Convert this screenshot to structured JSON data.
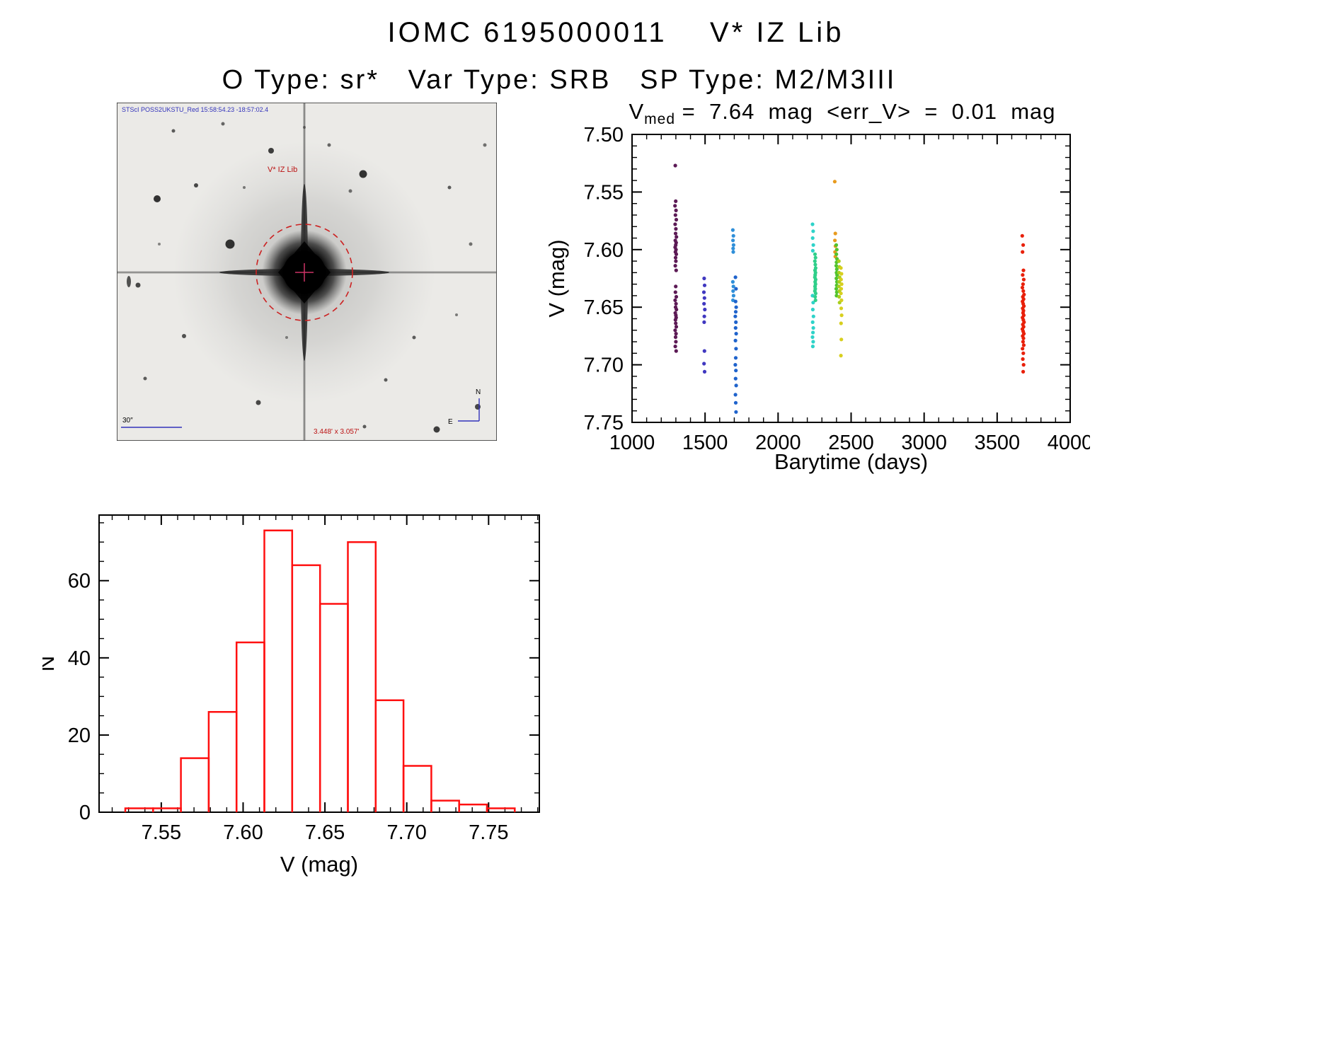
{
  "header": {
    "title": "IOMC 6195000011    V* IZ Lib",
    "subtitle": "O Type: sr*   Var Type: SRB   SP Type: M2/M3III"
  },
  "starfield": {
    "survey_label": "STScI POSS2UKSTU_Red 15:58:54.23 -18:57:02.4",
    "target_label": "V* IZ Lib",
    "scale_label": "30″",
    "fov_label": "3.448' x 3.057'",
    "compass_north": "N",
    "compass_east": "E",
    "annotation_color": "#cc1111",
    "caption_color": "#3333bb",
    "background_stars": [
      [
        218,
        68,
        4,
        0.85
      ],
      [
        348,
        101,
        5.5,
        0.9
      ],
      [
        57,
        136,
        5,
        0.9
      ],
      [
        160,
        200,
        6.5,
        0.9
      ],
      [
        112,
        117,
        3,
        0.8
      ],
      [
        30,
        258,
        3.5,
        0.8
      ],
      [
        330,
        125,
        2.5,
        0.6
      ],
      [
        470,
        120,
        2.5,
        0.7
      ],
      [
        95,
        330,
        3,
        0.75
      ],
      [
        200,
        424,
        3.5,
        0.8
      ],
      [
        420,
        332,
        2.5,
        0.7
      ],
      [
        300,
        60,
        2.5,
        0.65
      ],
      [
        80,
        40,
        2.5,
        0.7
      ],
      [
        500,
        200,
        2.5,
        0.6
      ],
      [
        380,
        392,
        2.5,
        0.7
      ],
      [
        452,
        462,
        4.5,
        0.85
      ],
      [
        40,
        390,
        2.5,
        0.7
      ],
      [
        520,
        60,
        2.5,
        0.6
      ],
      [
        150,
        30,
        2.5,
        0.65
      ],
      [
        480,
        300,
        2,
        0.55
      ],
      [
        240,
        332,
        2,
        0.5
      ],
      [
        60,
        200,
        2,
        0.5
      ],
      [
        510,
        430,
        4,
        0.8
      ],
      [
        350,
        458,
        2.5,
        0.7
      ],
      [
        180,
        120,
        2,
        0.55
      ],
      [
        265,
        35,
        2,
        0.5
      ]
    ]
  },
  "chart_data": [
    {
      "type": "scatter",
      "title_var": "V",
      "title_sub": "med",
      "title_rest": " =  7.64  mag  <err_V>  =  0.01  mag",
      "xlabel": "Barytime (days)",
      "ylabel": "V (mag)",
      "xlim": [
        1000,
        4000
      ],
      "ylim": [
        7.5,
        7.75
      ],
      "y_inverted": true,
      "grid": false,
      "legend": "none",
      "xtick_labels": [
        "1000",
        "1500",
        "2000",
        "2500",
        "3000",
        "3500",
        "4000"
      ],
      "ytick_labels": [
        "7.50",
        "7.55",
        "7.60",
        "7.65",
        "7.70",
        "7.75"
      ],
      "x_minor_step": 100,
      "y_minor_step": 0.01,
      "point_radius": 2.6,
      "series": [
        {
          "name": "epoch-1300",
          "color": "#5c1a55",
          "points": [
            [
              1296,
              7.527
            ],
            [
              1299,
              7.558
            ],
            [
              1294,
              7.562
            ],
            [
              1301,
              7.566
            ],
            [
              1297,
              7.57
            ],
            [
              1303,
              7.574
            ],
            [
              1295,
              7.578
            ],
            [
              1300,
              7.582
            ],
            [
              1298,
              7.586
            ],
            [
              1304,
              7.589
            ],
            [
              1296,
              7.592
            ],
            [
              1302,
              7.594
            ],
            [
              1299,
              7.596
            ],
            [
              1295,
              7.598
            ],
            [
              1301,
              7.6
            ],
            [
              1297,
              7.602
            ],
            [
              1303,
              7.604
            ],
            [
              1298,
              7.607
            ],
            [
              1300,
              7.61
            ],
            [
              1296,
              7.614
            ],
            [
              1302,
              7.618
            ],
            [
              1299,
              7.632
            ],
            [
              1297,
              7.637
            ],
            [
              1303,
              7.641
            ],
            [
              1295,
              7.644
            ],
            [
              1301,
              7.647
            ],
            [
              1298,
              7.65
            ],
            [
              1304,
              7.652
            ],
            [
              1296,
              7.655
            ],
            [
              1300,
              7.657
            ],
            [
              1302,
              7.659
            ],
            [
              1297,
              7.661
            ],
            [
              1299,
              7.664
            ],
            [
              1303,
              7.667
            ],
            [
              1295,
              7.67
            ],
            [
              1301,
              7.673
            ],
            [
              1298,
              7.676
            ],
            [
              1300,
              7.68
            ],
            [
              1296,
              7.684
            ],
            [
              1302,
              7.688
            ]
          ]
        },
        {
          "name": "epoch-1500",
          "color": "#4038c0",
          "points": [
            [
              1494,
              7.625
            ],
            [
              1497,
              7.631
            ],
            [
              1492,
              7.637
            ],
            [
              1496,
              7.642
            ],
            [
              1493,
              7.647
            ],
            [
              1498,
              7.652
            ],
            [
              1495,
              7.658
            ],
            [
              1494,
              7.663
            ],
            [
              1496,
              7.688
            ],
            [
              1493,
              7.699
            ],
            [
              1497,
              7.706
            ]
          ]
        },
        {
          "name": "epoch-1690",
          "color": "#2f8fd9",
          "points": [
            [
              1690,
              7.583
            ],
            [
              1694,
              7.588
            ],
            [
              1691,
              7.592
            ],
            [
              1695,
              7.596
            ],
            [
              1692,
              7.599
            ],
            [
              1693,
              7.602
            ],
            [
              1690,
              7.628
            ],
            [
              1694,
              7.632
            ],
            [
              1692,
              7.636
            ],
            [
              1695,
              7.64
            ],
            [
              1691,
              7.644
            ]
          ]
        },
        {
          "name": "epoch-1710",
          "color": "#1f63cc",
          "points": [
            [
              1708,
              7.624
            ],
            [
              1712,
              7.634
            ],
            [
              1709,
              7.645
            ],
            [
              1713,
              7.65
            ],
            [
              1710,
              7.654
            ],
            [
              1707,
              7.658
            ],
            [
              1711,
              7.663
            ],
            [
              1709,
              7.668
            ],
            [
              1713,
              7.673
            ],
            [
              1708,
              7.679
            ],
            [
              1712,
              7.686
            ],
            [
              1710,
              7.694
            ],
            [
              1707,
              7.7
            ],
            [
              1711,
              7.705
            ],
            [
              1709,
              7.712
            ],
            [
              1713,
              7.718
            ],
            [
              1708,
              7.726
            ],
            [
              1710,
              7.733
            ],
            [
              1712,
              7.741
            ]
          ]
        },
        {
          "name": "epoch-2240",
          "color": "#2fd3c9",
          "points": [
            [
              2236,
              7.578
            ],
            [
              2240,
              7.584
            ],
            [
              2237,
              7.59
            ],
            [
              2241,
              7.596
            ],
            [
              2238,
              7.601
            ],
            [
              2236,
              7.64
            ],
            [
              2240,
              7.646
            ],
            [
              2238,
              7.652
            ],
            [
              2242,
              7.658
            ],
            [
              2237,
              7.663
            ],
            [
              2241,
              7.668
            ],
            [
              2239,
              7.672
            ],
            [
              2236,
              7.676
            ],
            [
              2240,
              7.68
            ],
            [
              2238,
              7.684
            ]
          ]
        },
        {
          "name": "epoch-2255",
          "color": "#2fcf8a",
          "points": [
            [
              2253,
              7.604
            ],
            [
              2256,
              7.607
            ],
            [
              2252,
              7.61
            ],
            [
              2255,
              7.613
            ],
            [
              2257,
              7.616
            ],
            [
              2253,
              7.618
            ],
            [
              2256,
              7.62
            ],
            [
              2254,
              7.622
            ],
            [
              2252,
              7.624
            ],
            [
              2257,
              7.626
            ],
            [
              2254,
              7.628
            ],
            [
              2256,
              7.63
            ],
            [
              2253,
              7.632
            ],
            [
              2255,
              7.634
            ],
            [
              2252,
              7.636
            ],
            [
              2257,
              7.638
            ],
            [
              2254,
              7.641
            ],
            [
              2256,
              7.644
            ]
          ]
        },
        {
          "name": "epoch-2390",
          "color": "#e89b1e",
          "points": [
            [
              2388,
              7.541
            ],
            [
              2392,
              7.586
            ],
            [
              2389,
              7.592
            ],
            [
              2393,
              7.597
            ],
            [
              2390,
              7.602
            ],
            [
              2392,
              7.606
            ]
          ]
        },
        {
          "name": "epoch-2400",
          "color": "#52c32e",
          "points": [
            [
              2398,
              7.596
            ],
            [
              2402,
              7.6
            ],
            [
              2399,
              7.604
            ],
            [
              2403,
              7.608
            ],
            [
              2400,
              7.611
            ],
            [
              2398,
              7.614
            ],
            [
              2402,
              7.617
            ],
            [
              2400,
              7.62
            ],
            [
              2404,
              7.622
            ],
            [
              2399,
              7.625
            ],
            [
              2403,
              7.628
            ],
            [
              2401,
              7.631
            ],
            [
              2398,
              7.634
            ],
            [
              2402,
              7.637
            ],
            [
              2400,
              7.64
            ]
          ]
        },
        {
          "name": "epoch-2418",
          "color": "#a8cf1e",
          "points": [
            [
              2416,
              7.61
            ],
            [
              2420,
              7.615
            ],
            [
              2417,
              7.62
            ],
            [
              2421,
              7.624
            ],
            [
              2418,
              7.628
            ],
            [
              2416,
              7.632
            ],
            [
              2420,
              7.636
            ],
            [
              2418,
              7.641
            ],
            [
              2421,
              7.646
            ]
          ]
        },
        {
          "name": "epoch-2432",
          "color": "#d8cf1e",
          "points": [
            [
              2430,
              7.616
            ],
            [
              2434,
              7.621
            ],
            [
              2431,
              7.626
            ],
            [
              2435,
              7.63
            ],
            [
              2432,
              7.634
            ],
            [
              2430,
              7.638
            ],
            [
              2434,
              7.644
            ],
            [
              2432,
              7.651
            ],
            [
              2435,
              7.657
            ],
            [
              2431,
              7.664
            ],
            [
              2433,
              7.678
            ],
            [
              2430,
              7.692
            ]
          ]
        },
        {
          "name": "epoch-3680",
          "color": "#e8200a",
          "points": [
            [
              3672,
              7.588
            ],
            [
              3678,
              7.596
            ],
            [
              3674,
              7.602
            ],
            [
              3680,
              7.618
            ],
            [
              3675,
              7.622
            ],
            [
              3682,
              7.626
            ],
            [
              3677,
              7.63
            ],
            [
              3673,
              7.633
            ],
            [
              3679,
              7.636
            ],
            [
              3684,
              7.639
            ],
            [
              3676,
              7.641
            ],
            [
              3681,
              7.643
            ],
            [
              3674,
              7.645
            ],
            [
              3678,
              7.647
            ],
            [
              3683,
              7.649
            ],
            [
              3675,
              7.651
            ],
            [
              3680,
              7.653
            ],
            [
              3677,
              7.655
            ],
            [
              3682,
              7.657
            ],
            [
              3674,
              7.659
            ],
            [
              3679,
              7.661
            ],
            [
              3684,
              7.663
            ],
            [
              3676,
              7.665
            ],
            [
              3681,
              7.667
            ],
            [
              3673,
              7.669
            ],
            [
              3678,
              7.671
            ],
            [
              3683,
              7.673
            ],
            [
              3675,
              7.675
            ],
            [
              3680,
              7.677
            ],
            [
              3677,
              7.68
            ],
            [
              3682,
              7.683
            ],
            [
              3674,
              7.686
            ],
            [
              3679,
              7.69
            ],
            [
              3676,
              7.695
            ],
            [
              3681,
              7.7
            ],
            [
              3678,
              7.706
            ]
          ]
        }
      ]
    },
    {
      "type": "bar",
      "title": "",
      "xlabel": "V (mag)",
      "ylabel": "N",
      "xlim": [
        7.512,
        7.781
      ],
      "ylim": [
        0,
        77
      ],
      "grid": false,
      "legend": "none",
      "xtick_labels": [
        "7.55",
        "7.60",
        "7.65",
        "7.70",
        "7.75"
      ],
      "ytick_labels": [
        "0",
        "20",
        "40",
        "60"
      ],
      "x_minor_step": 0.01,
      "y_minor_step": 5,
      "bar_color": "#ff1010",
      "bin_edges": [
        7.528,
        7.545,
        7.562,
        7.579,
        7.596,
        7.613,
        7.63,
        7.647,
        7.664,
        7.681,
        7.698,
        7.715,
        7.732,
        7.749,
        7.766
      ],
      "counts": [
        1,
        1,
        14,
        26,
        44,
        73,
        64,
        54,
        70,
        29,
        12,
        3,
        2,
        1
      ]
    }
  ]
}
